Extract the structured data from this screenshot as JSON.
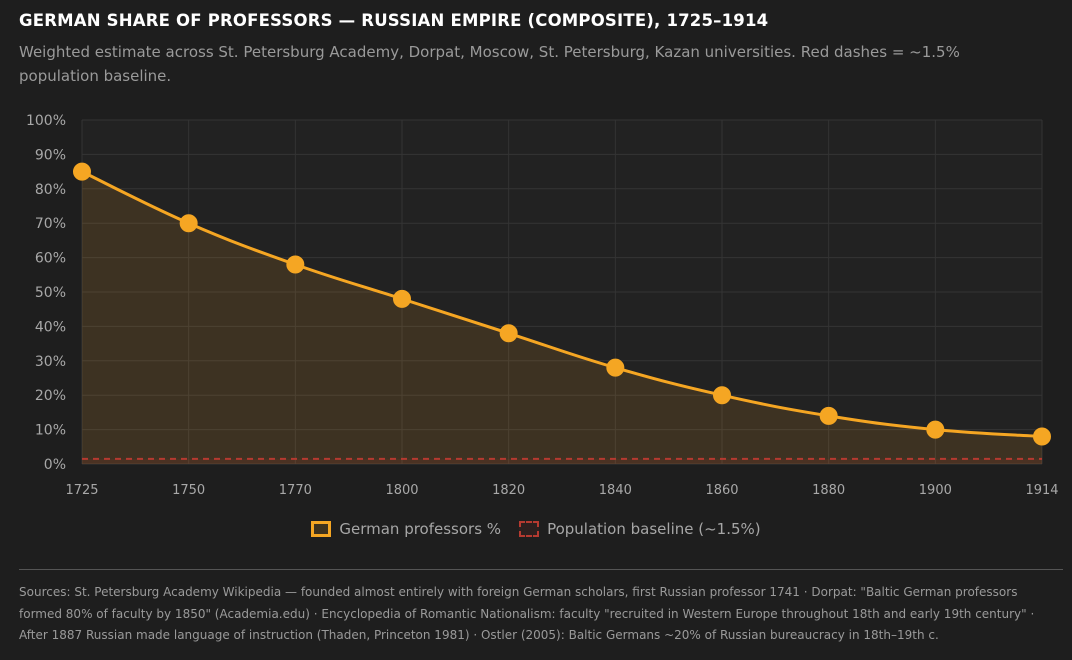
{
  "header": {
    "title": "GERMAN SHARE OF PROFESSORS — RUSSIAN EMPIRE (COMPOSITE), 1725–1914",
    "subtitle": "Weighted estimate across St. Petersburg Academy, Dorpat, Moscow, St. Petersburg, Kazan universities. Red dashes = ~1.5% population baseline."
  },
  "chart_data": {
    "type": "line",
    "categories": [
      "1725",
      "1750",
      "1770",
      "1800",
      "1820",
      "1840",
      "1860",
      "1880",
      "1900",
      "1914"
    ],
    "series": [
      {
        "name": "German professors %",
        "values": [
          85,
          70,
          58,
          48,
          38,
          28,
          20,
          14,
          10,
          8
        ],
        "color": "#f5a623",
        "style": "solid-filled-markers"
      },
      {
        "name": "Population baseline (~1.5%)",
        "values": [
          1.5,
          1.5,
          1.5,
          1.5,
          1.5,
          1.5,
          1.5,
          1.5,
          1.5,
          1.5
        ],
        "color": "#b53a30",
        "style": "dashed"
      }
    ],
    "yticks": [
      "0%",
      "10%",
      "20%",
      "30%",
      "40%",
      "50%",
      "60%",
      "70%",
      "80%",
      "90%",
      "100%"
    ],
    "ylim": [
      0,
      100
    ],
    "grid": true,
    "legend_position": "bottom-center",
    "xlabel": "",
    "ylabel": ""
  },
  "legend": {
    "items": [
      {
        "label": "German professors %"
      },
      {
        "label": "Population baseline (~1.5%)"
      }
    ]
  },
  "footer": {
    "sources": "Sources: St. Petersburg Academy Wikipedia — founded almost entirely with foreign German scholars, first Russian professor 1741 · Dorpat: \"Baltic German professors formed 80% of faculty by 1850\" (Academia.edu) · Encyclopedia of Romantic Nationalism: faculty \"recruited in Western Europe throughout 18th and early 19th century\" · After 1887 Russian made language of instruction (Thaden, Princeton 1981) · Ostler (2005): Baltic Germans ~20% of Russian bureaucracy in 18th–19th c."
  },
  "colors": {
    "background": "#1e1e1e",
    "accent": "#f5a623",
    "baseline": "#b53a30",
    "grid": "#333333"
  }
}
